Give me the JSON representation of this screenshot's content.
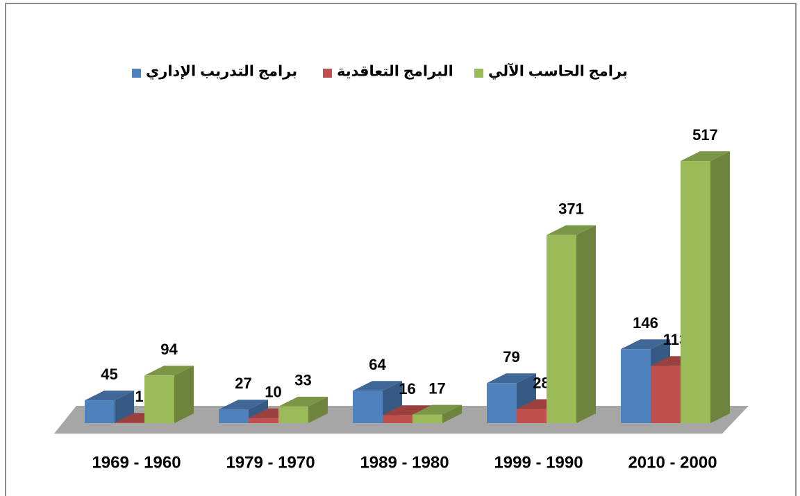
{
  "chart_data": {
    "type": "bar3d",
    "categories": [
      "1969 - 1960",
      "1979 - 1970",
      "1989 - 1980",
      "1999 - 1990",
      "2010 - 2000"
    ],
    "series": [
      {
        "name": "برامج التدريب الإداري",
        "color": "#4f81bd",
        "values": [
          45,
          27,
          64,
          79,
          146
        ]
      },
      {
        "name": "البرامج التعاقدية",
        "color": "#c0504d",
        "values": [
          1,
          10,
          16,
          28,
          113
        ]
      },
      {
        "name": "برامج الحاسب الآلي",
        "color": "#9bbb59",
        "values": [
          94,
          33,
          17,
          371,
          517
        ]
      }
    ],
    "legend": "top"
  }
}
